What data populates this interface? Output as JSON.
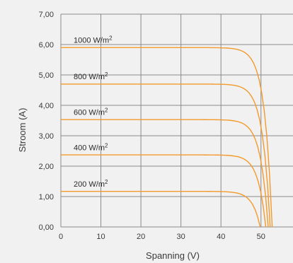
{
  "chart_data": {
    "type": "line",
    "title": "",
    "xlabel": "Spanning (V)",
    "ylabel": "Stroom (A)",
    "xlim": [
      0,
      58
    ],
    "ylim": [
      0,
      7
    ],
    "x_ticks": [
      0,
      10,
      20,
      30,
      40,
      50
    ],
    "x_tick_labels": [
      "0",
      "10",
      "20",
      "30",
      "40",
      "50"
    ],
    "y_ticks": [
      0,
      1,
      2,
      3,
      4,
      5,
      6,
      7
    ],
    "y_tick_labels": [
      "0,00",
      "1,00",
      "2,00",
      "3,00",
      "4,00",
      "5,00",
      "6,00",
      "7,00"
    ],
    "grid": true,
    "line_color": "#f39a2b",
    "grid_color": "#8a8a8a",
    "label_superscript": "2",
    "series": [
      {
        "name": "1000 W/m",
        "isc": 5.9,
        "knee_v": 40.5,
        "voc": 52.8,
        "label_y": 6.15
      },
      {
        "name": "800 W/m",
        "isc": 4.7,
        "knee_v": 40.5,
        "voc": 52.3,
        "label_y": 4.95
      },
      {
        "name": "600 W/m",
        "isc": 3.53,
        "knee_v": 40.5,
        "voc": 51.8,
        "label_y": 3.78
      },
      {
        "name": "400 W/m",
        "isc": 2.37,
        "knee_v": 40.5,
        "voc": 51.2,
        "label_y": 2.62
      },
      {
        "name": "200 W/m",
        "isc": 1.17,
        "knee_v": 40.5,
        "voc": 49.8,
        "label_y": 1.42
      }
    ]
  }
}
